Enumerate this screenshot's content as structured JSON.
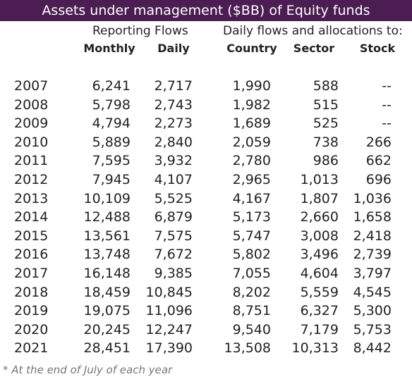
{
  "title": "Assets under management ($BB) of Equity funds",
  "header": {
    "group_reporting": "Reporting Flows",
    "group_daily": "Daily flows and allocations to:",
    "columns": [
      "Monthly",
      "Daily",
      "Country",
      "Sector",
      "Stock"
    ]
  },
  "rows": [
    {
      "year": "2007",
      "monthly": "6,241",
      "daily": "2,717",
      "country": "1,990",
      "sector": "588",
      "stock": "--"
    },
    {
      "year": "2008",
      "monthly": "5,798",
      "daily": "2,743",
      "country": "1,982",
      "sector": "515",
      "stock": "--"
    },
    {
      "year": "2009",
      "monthly": "4,794",
      "daily": "2,273",
      "country": "1,689",
      "sector": "525",
      "stock": "--"
    },
    {
      "year": "2010",
      "monthly": "5,889",
      "daily": "2,840",
      "country": "2,059",
      "sector": "738",
      "stock": "266"
    },
    {
      "year": "2011",
      "monthly": "7,595",
      "daily": "3,932",
      "country": "2,780",
      "sector": "986",
      "stock": "662"
    },
    {
      "year": "2012",
      "monthly": "7,945",
      "daily": "4,107",
      "country": "2,965",
      "sector": "1,013",
      "stock": "696"
    },
    {
      "year": "2013",
      "monthly": "10,109",
      "daily": "5,525",
      "country": "4,167",
      "sector": "1,807",
      "stock": "1,036"
    },
    {
      "year": "2014",
      "monthly": "12,488",
      "daily": "6,879",
      "country": "5,173",
      "sector": "2,660",
      "stock": "1,658"
    },
    {
      "year": "2015",
      "monthly": "13,561",
      "daily": "7,575",
      "country": "5,747",
      "sector": "3,008",
      "stock": "2,418"
    },
    {
      "year": "2016",
      "monthly": "13,748",
      "daily": "7,672",
      "country": "5,802",
      "sector": "3,496",
      "stock": "2,739"
    },
    {
      "year": "2017",
      "monthly": "16,148",
      "daily": "9,385",
      "country": "7,055",
      "sector": "4,604",
      "stock": "3,797"
    },
    {
      "year": "2018",
      "monthly": "18,459",
      "daily": "10,845",
      "country": "8,202",
      "sector": "5,559",
      "stock": "4,545"
    },
    {
      "year": "2019",
      "monthly": "19,075",
      "daily": "11,096",
      "country": "8,751",
      "sector": "6,327",
      "stock": "5,300"
    },
    {
      "year": "2020",
      "monthly": "20,245",
      "daily": "12,247",
      "country": "9,540",
      "sector": "7,179",
      "stock": "5,753"
    },
    {
      "year": "2021",
      "monthly": "28,451",
      "daily": "17,390",
      "country": "13,508",
      "sector": "10,313",
      "stock": "8,442"
    }
  ],
  "footnote": "* At the end of July of each year",
  "colors": {
    "title_bg": "#4b1d52",
    "title_text": "#ffffff",
    "footnote": "#777777"
  }
}
